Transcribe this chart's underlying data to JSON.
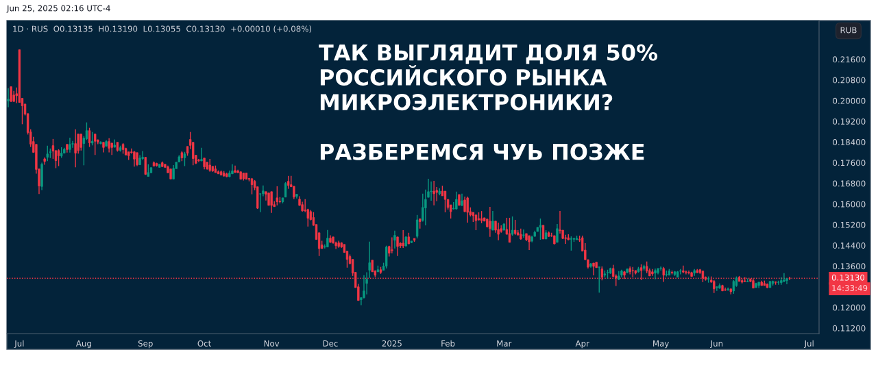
{
  "chart_data": {
    "type": "candlestick",
    "title": "ТАК ВЫГЛЯДИТ ДОЛЯ 50%\nРОССИЙСКОГО РЫНКА\nМИКРОЭЛЕКТРОНИКИ?\n\nРАЗБЕРЕМСЯ ЧУЬ ПОЗЖЕ",
    "subtitle": "1D · RUS  O0.13135  H0.13190  L0.13055  C0.13130  +0.00010 (+0.08%)",
    "annotations": [
      "Jun 25, 2025 02:16 UTC-4",
      "RUB",
      "14:33:49"
    ],
    "colors": [
      "#089981",
      "#f23645",
      "#f23645",
      "#f23645",
      "#f23645",
      "#f23645",
      "#f23645",
      "#f23645",
      "#f23645",
      "#f23645",
      "#f23645",
      "#f23645",
      "#089981",
      "#f23645",
      "#089981",
      "#089981",
      "#f23645",
      "#f23645",
      "#f23645",
      "#089981",
      "#089981",
      "#f23645",
      "#089981",
      "#089981",
      "#f23645",
      "#f23645",
      "#f23645",
      "#089981",
      "#089981",
      "#f23645",
      "#089981",
      "#f23645",
      "#f23645",
      "#089981",
      "#f23645",
      "#089981",
      "#f23645",
      "#f23645",
      "#089981",
      "#f23645",
      "#089981",
      "#f23645",
      "#f23645",
      "#f23645",
      "#f23645",
      "#f23645",
      "#f23645",
      "#089981",
      "#089981",
      "#f23645",
      "#089981",
      "#089981",
      "#f23645",
      "#f23645",
      "#089981",
      "#f23645",
      "#f23645",
      "#f23645",
      "#f23645",
      "#089981",
      "#089981",
      "#089981",
      "#f23645",
      "#089981",
      "#f23645",
      "#f23645",
      "#f23645",
      "#f23645",
      "#f23645",
      "#089981",
      "#f23645",
      "#f23645",
      "#f23645",
      "#f23645",
      "#f23645",
      "#f23645",
      "#f23645",
      "#f23645",
      "#f23645",
      "#089981",
      "#089981",
      "#f23645",
      "#f23645",
      "#f23645",
      "#f23645",
      "#f23645",
      "#f23645",
      "#f23645",
      "#f23645",
      "#f23645",
      "#089981",
      "#089981",
      "#f23645",
      "#f23645",
      "#f23645",
      "#f23645",
      "#f23645",
      "#f23645",
      "#089981",
      "#089981",
      "#f23645",
      "#f23645",
      "#f23645",
      "#089981",
      "#f23645",
      "#f23645",
      "#f23645",
      "#f23645",
      "#f23645",
      "#f23645",
      "#f23645",
      "#f23645",
      "#f23645",
      "#089981",
      "#089981",
      "#f23645",
      "#f23645",
      "#f23645",
      "#f23645",
      "#f23645",
      "#f23645",
      "#f23645",
      "#f23645",
      "#f23645",
      "#f23645",
      "#f23645",
      "#089981",
      "#089981",
      "#089981",
      "#089981",
      "#f23645",
      "#f23645",
      "#089981",
      "#f23645",
      "#089981",
      "#089981",
      "#f23645",
      "#f23645",
      "#089981",
      "#f23645",
      "#f23645",
      "#f23645",
      "#089981",
      "#f23645",
      "#089981",
      "#f23645",
      "#089981",
      "#f23645",
      "#089981",
      "#089981",
      "#089981",
      "#089981",
      "#f23645",
      "#f23645",
      "#089981",
      "#f23645",
      "#f23645",
      "#f23645",
      "#f23645",
      "#089981",
      "#089981",
      "#f23645",
      "#089981",
      "#f23645",
      "#f23645",
      "#f23645",
      "#f23645",
      "#f23645",
      "#f23645",
      "#f23645",
      "#f23645",
      "#f23645",
      "#f23645",
      "#089981",
      "#f23645",
      "#f23645",
      "#f23645",
      "#089981",
      "#f23645",
      "#f23645",
      "#089981",
      "#f23645",
      "#f23645",
      "#f23645",
      "#089981",
      "#f23645",
      "#f23645",
      "#089981",
      "#089981",
      "#089981",
      "#089981",
      "#f23645",
      "#089981",
      "#f23645",
      "#f23645",
      "#f23645",
      "#089981",
      "#f23645",
      "#f23645",
      "#f23645",
      "#f23645",
      "#089981",
      "#089981",
      "#089981",
      "#f23645",
      "#f23645",
      "#f23645",
      "#f23645",
      "#089981",
      "#f23645",
      "#f23645",
      "#089981",
      "#f23645",
      "#089981",
      "#089981",
      "#089981",
      "#f23645",
      "#f23645",
      "#089981",
      "#089981",
      "#f23645",
      "#089981",
      "#f23645",
      "#f23645",
      "#f23645",
      "#089981",
      "#f23645",
      "#089981",
      "#f23645",
      "#f23645",
      "#f23645",
      "#089981",
      "#089981",
      "#089981",
      "#f23645",
      "#089981",
      "#089981",
      "#f23645",
      "#089981",
      "#089981",
      "#089981",
      "#f23645",
      "#f23645",
      "#f23645",
      "#f23645",
      "#089981",
      "#f23645",
      "#f23645",
      "#f23645",
      "#f23645",
      "#089981",
      "#f23645",
      "#f23645",
      "#089981",
      "#089981",
      "#f23645",
      "#f23645",
      "#089981",
      "#f23645",
      "#089981",
      "#089981",
      "#f23645",
      "#f23645",
      "#f23645",
      "#089981",
      "#f23645",
      "#f23645",
      "#089981",
      "#089981",
      "#f23645",
      "#f23645",
      "#f23645",
      "#089981",
      "#089981",
      "#f23645",
      "#089981",
      "#089981",
      "#089981",
      "#089981",
      "#f23645",
      null,
      null,
      null,
      null,
      null,
      null,
      null,
      null,
      null,
      null
    ],
    "ylim": [
      0.1099,
      0.231
    ],
    "yticks": [
      {
        "value": 0.112,
        "label": "0.11200"
      },
      {
        "value": 0.12,
        "label": "0.12000"
      },
      {
        "value": 0.136,
        "label": "0.13600"
      },
      {
        "value": 0.144,
        "label": "0.14400"
      },
      {
        "value": 0.152,
        "label": "0.15200"
      },
      {
        "value": 0.16,
        "label": "0.16000"
      },
      {
        "value": 0.168,
        "label": "0.16800"
      },
      {
        "value": 0.176,
        "label": "0.17600"
      },
      {
        "value": 0.184,
        "label": "0.18400"
      },
      {
        "value": 0.192,
        "label": "0.19200"
      },
      {
        "value": 0.2,
        "label": "0.20000"
      },
      {
        "value": 0.208,
        "label": "0.20800"
      },
      {
        "value": 0.216,
        "label": "0.21600"
      }
    ],
    "ref_lines": [
      {
        "axis": "y",
        "value": 0.1313,
        "label": "0.13130",
        "color": "#f23645",
        "line_style": "dotted"
      }
    ],
    "categories": [
      null,
      null,
      null,
      null,
      "Jul",
      null,
      null,
      null,
      null,
      null,
      null,
      null,
      null,
      null,
      null,
      null,
      null,
      null,
      null,
      null,
      null,
      null,
      null,
      null,
      null,
      null,
      null,
      "Aug",
      null,
      null,
      null,
      null,
      null,
      null,
      null,
      null,
      null,
      null,
      null,
      null,
      null,
      null,
      null,
      null,
      null,
      null,
      null,
      null,
      null,
      "Sep",
      null,
      null,
      null,
      null,
      null,
      null,
      null,
      null,
      null,
      null,
      null,
      null,
      null,
      null,
      null,
      null,
      null,
      null,
      null,
      null,
      "Oct",
      null,
      null,
      null,
      null,
      null,
      null,
      null,
      null,
      null,
      null,
      null,
      null,
      null,
      null,
      null,
      null,
      null,
      null,
      null,
      null,
      null,
      null,
      null,
      "Nov",
      null,
      null,
      null,
      null,
      null,
      null,
      null,
      null,
      null,
      null,
      null,
      null,
      null,
      null,
      null,
      null,
      null,
      null,
      null,
      null,
      "Dec",
      null,
      null,
      null,
      null,
      null,
      null,
      null,
      null,
      null,
      null,
      null,
      null,
      null,
      null,
      null,
      null,
      null,
      null,
      null,
      null,
      null,
      "2025",
      null,
      null,
      null,
      null,
      null,
      null,
      null,
      null,
      null,
      null,
      null,
      null,
      null,
      null,
      null,
      null,
      null,
      null,
      null,
      "Feb",
      null,
      null,
      null,
      null,
      null,
      null,
      null,
      null,
      null,
      null,
      null,
      null,
      null,
      null,
      null,
      null,
      null,
      null,
      null,
      "Mar",
      null,
      null,
      null,
      null,
      null,
      null,
      null,
      null,
      null,
      null,
      null,
      null,
      null,
      null,
      null,
      null,
      null,
      null,
      null,
      null,
      null,
      null,
      null,
      null,
      null,
      null,
      null,
      "Apr",
      null,
      null,
      null,
      null,
      null,
      null,
      null,
      null,
      null,
      null,
      null,
      null,
      null,
      null,
      null,
      null,
      null,
      null,
      null,
      null,
      null,
      null,
      null,
      null,
      null,
      null,
      null,
      "May",
      null,
      null,
      null,
      null,
      null,
      null,
      null,
      null,
      null,
      null,
      null,
      null,
      null,
      null,
      null,
      null,
      null,
      null,
      null,
      "Jun",
      null,
      null,
      null,
      null,
      null,
      null,
      null,
      null,
      null,
      null,
      null,
      null,
      null,
      null,
      null,
      null,
      null,
      null,
      null,
      null,
      null,
      null,
      null,
      null,
      null,
      null,
      null,
      null,
      null,
      null,
      null,
      null,
      "Jul",
      null,
      null,
      null
    ],
    "ohlc": [
      [
        0.1999,
        0.2048,
        0.1975,
        0.2006
      ],
      [
        0.2054,
        0.2054,
        0.1995,
        0.1997
      ],
      [
        0.2022,
        0.2038,
        0.1996,
        0.1997
      ],
      [
        0.2027,
        0.2051,
        0.1991,
        0.2019
      ],
      [
        0.2197,
        0.2197,
        0.1993,
        0.1993
      ],
      [
        0.2009,
        0.2009,
        0.1909,
        0.198
      ],
      [
        0.1987,
        0.1987,
        0.1943,
        0.1948
      ],
      [
        0.195,
        0.195,
        0.1869,
        0.1877
      ],
      [
        0.1879,
        0.1889,
        0.1821,
        0.1832
      ],
      [
        0.1842,
        0.186,
        0.18,
        0.18
      ],
      [
        0.1831,
        0.1831,
        0.1718,
        0.1734
      ],
      [
        0.1736,
        0.1736,
        0.1639,
        0.167
      ],
      [
        0.1668,
        0.176,
        0.1654,
        0.1754
      ],
      [
        0.1775,
        0.1781,
        0.1752,
        0.1765
      ],
      [
        0.1781,
        0.1826,
        0.1766,
        0.1794
      ],
      [
        0.18,
        0.1815,
        0.1778,
        0.1802
      ],
      [
        0.1826,
        0.1852,
        0.1775,
        0.1805
      ],
      [
        0.1807,
        0.1807,
        0.1739,
        0.1768
      ],
      [
        0.1807,
        0.1812,
        0.1747,
        0.1787
      ],
      [
        0.1786,
        0.182,
        0.1779,
        0.1797
      ],
      [
        0.1797,
        0.1818,
        0.1797,
        0.1812
      ],
      [
        0.1831,
        0.1831,
        0.1799,
        0.1811
      ],
      [
        0.1811,
        0.1857,
        0.1799,
        0.1831
      ],
      [
        0.1832,
        0.1844,
        0.1818,
        0.1834
      ],
      [
        0.1834,
        0.1889,
        0.1742,
        0.1797
      ],
      [
        0.1871,
        0.1871,
        0.1795,
        0.1807
      ],
      [
        0.1871,
        0.1871,
        0.1807,
        0.1819
      ],
      [
        0.1834,
        0.1863,
        0.175,
        0.1855
      ],
      [
        0.1853,
        0.1916,
        0.1848,
        0.1884
      ],
      [
        0.1884,
        0.1895,
        0.1821,
        0.1837
      ],
      [
        0.1836,
        0.1879,
        0.1827,
        0.1843
      ],
      [
        0.1871,
        0.1871,
        0.179,
        0.1843
      ],
      [
        0.1848,
        0.185,
        0.1832,
        0.184
      ],
      [
        0.1834,
        0.1843,
        0.1831,
        0.1839
      ],
      [
        0.1839,
        0.1839,
        0.18,
        0.1819
      ],
      [
        0.1824,
        0.1847,
        0.1824,
        0.1842
      ],
      [
        0.1842,
        0.1855,
        0.18,
        0.1816
      ],
      [
        0.1836,
        0.1836,
        0.179,
        0.1819
      ],
      [
        0.182,
        0.185,
        0.1819,
        0.1828
      ],
      [
        0.1839,
        0.1839,
        0.1803,
        0.1808
      ],
      [
        0.1808,
        0.1826,
        0.1803,
        0.1818
      ],
      [
        0.1831,
        0.1836,
        0.1795,
        0.1811
      ],
      [
        0.1815,
        0.1818,
        0.179,
        0.179
      ],
      [
        0.1802,
        0.1802,
        0.1771,
        0.1787
      ],
      [
        0.1802,
        0.1815,
        0.1795,
        0.1799
      ],
      [
        0.1802,
        0.1805,
        0.1745,
        0.1774
      ],
      [
        0.1799,
        0.1799,
        0.1747,
        0.1752
      ],
      [
        0.1752,
        0.1789,
        0.1752,
        0.1778
      ],
      [
        0.1776,
        0.1805,
        0.1771,
        0.1781
      ],
      [
        0.1781,
        0.1781,
        0.1713,
        0.1715
      ],
      [
        0.1707,
        0.1754,
        0.1707,
        0.1722
      ],
      [
        0.1721,
        0.1741,
        0.1721,
        0.1741
      ],
      [
        0.176,
        0.1765,
        0.1747,
        0.1747
      ],
      [
        0.1757,
        0.176,
        0.1745,
        0.1749
      ],
      [
        0.1742,
        0.1754,
        0.1742,
        0.1754
      ],
      [
        0.176,
        0.1765,
        0.1745,
        0.1745
      ],
      [
        0.1754,
        0.1754,
        0.1742,
        0.1742
      ],
      [
        0.1744,
        0.1749,
        0.1721,
        0.1721
      ],
      [
        0.1736,
        0.1736,
        0.1697,
        0.1697
      ],
      [
        0.1697,
        0.1751,
        0.1697,
        0.1738
      ],
      [
        0.1737,
        0.1762,
        0.1737,
        0.1762
      ],
      [
        0.1763,
        0.1789,
        0.1763,
        0.1783
      ],
      [
        0.1799,
        0.1805,
        0.1766,
        0.1779
      ],
      [
        0.1779,
        0.1802,
        0.1747,
        0.1794
      ],
      [
        0.1823,
        0.1823,
        0.1787,
        0.1797
      ],
      [
        0.185,
        0.1879,
        0.1813,
        0.1827
      ],
      [
        0.1839,
        0.1839,
        0.175,
        0.1776
      ],
      [
        0.1789,
        0.1789,
        0.1755,
        0.1758
      ],
      [
        0.1771,
        0.1775,
        0.1763,
        0.1768
      ],
      [
        0.1767,
        0.1818,
        0.1766,
        0.1773
      ],
      [
        0.1778,
        0.1778,
        0.1734,
        0.1744
      ],
      [
        0.1762,
        0.1762,
        0.1733,
        0.1736
      ],
      [
        0.1751,
        0.1775,
        0.1725,
        0.173
      ],
      [
        0.1746,
        0.1746,
        0.1725,
        0.1728
      ],
      [
        0.1736,
        0.1749,
        0.1722,
        0.1722
      ],
      [
        0.1725,
        0.173,
        0.1717,
        0.1717
      ],
      [
        0.1725,
        0.173,
        0.1712,
        0.1712
      ],
      [
        0.172,
        0.1728,
        0.1706,
        0.1709
      ],
      [
        0.1717,
        0.1722,
        0.1704,
        0.1706
      ],
      [
        0.1706,
        0.173,
        0.1704,
        0.172
      ],
      [
        0.1717,
        0.1754,
        0.1717,
        0.1728
      ],
      [
        0.173,
        0.1749,
        0.1722,
        0.1722
      ],
      [
        0.1728,
        0.1733,
        0.172,
        0.1722
      ],
      [
        0.1725,
        0.1725,
        0.1696,
        0.1696
      ],
      [
        0.172,
        0.172,
        0.1691,
        0.1698
      ],
      [
        0.172,
        0.172,
        0.1696,
        0.1696
      ],
      [
        0.1699,
        0.1701,
        0.1688,
        0.1696
      ],
      [
        0.1698,
        0.1701,
        0.1638,
        0.1675
      ],
      [
        0.1688,
        0.1693,
        0.1654,
        0.1664
      ],
      [
        0.1667,
        0.1667,
        0.1581,
        0.1584
      ],
      [
        0.1639,
        0.164,
        0.1569,
        0.164
      ],
      [
        0.164,
        0.1672,
        0.163,
        0.1651
      ],
      [
        0.1648,
        0.1648,
        0.1614,
        0.1638
      ],
      [
        0.1643,
        0.1643,
        0.1595,
        0.1595
      ],
      [
        0.1648,
        0.1648,
        0.1566,
        0.1595
      ],
      [
        0.1598,
        0.1611,
        0.159,
        0.159
      ],
      [
        0.1624,
        0.1669,
        0.1595,
        0.1609
      ],
      [
        0.1611,
        0.1627,
        0.1603,
        0.1609
      ],
      [
        0.1609,
        0.1624,
        0.1603,
        0.1624
      ],
      [
        0.1627,
        0.1685,
        0.1627,
        0.168
      ],
      [
        0.1688,
        0.1709,
        0.1659,
        0.1672
      ],
      [
        0.1675,
        0.1709,
        0.1667,
        0.1667
      ],
      [
        0.1669,
        0.1669,
        0.1619,
        0.1627
      ],
      [
        0.163,
        0.1638,
        0.1622,
        0.1638
      ],
      [
        0.1619,
        0.163,
        0.1593,
        0.1595
      ],
      [
        0.1598,
        0.1609,
        0.1571,
        0.1574
      ],
      [
        0.1577,
        0.1619,
        0.1569,
        0.1574
      ],
      [
        0.1579,
        0.1582,
        0.1513,
        0.1545
      ],
      [
        0.1571,
        0.1577,
        0.1537,
        0.154
      ],
      [
        0.1548,
        0.1569,
        0.1516,
        0.1518
      ],
      [
        0.1521,
        0.1521,
        0.1463,
        0.1463
      ],
      [
        0.1489,
        0.1489,
        0.1399,
        0.1428
      ],
      [
        0.1442,
        0.1458,
        0.1428,
        0.1428
      ],
      [
        0.1434,
        0.1444,
        0.1428,
        0.1436
      ],
      [
        0.1434,
        0.15,
        0.1434,
        0.1468
      ],
      [
        0.1468,
        0.1479,
        0.145,
        0.1452
      ],
      [
        0.1473,
        0.1473,
        0.1447,
        0.145
      ],
      [
        0.145,
        0.1455,
        0.1426,
        0.1439
      ],
      [
        0.145,
        0.1458,
        0.1431,
        0.1436
      ],
      [
        0.145,
        0.1452,
        0.1431,
        0.1434
      ],
      [
        0.1444,
        0.1444,
        0.1413,
        0.1413
      ],
      [
        0.1418,
        0.1418,
        0.1354,
        0.1386
      ],
      [
        0.1397,
        0.1405,
        0.1367,
        0.137
      ],
      [
        0.1386,
        0.1386,
        0.1322,
        0.1333
      ],
      [
        0.1336,
        0.1336,
        0.1277,
        0.1277
      ],
      [
        0.128,
        0.1291,
        0.1227,
        0.1227
      ],
      [
        0.123,
        0.1238,
        0.1209,
        0.1238
      ],
      [
        0.1238,
        0.1325,
        0.1235,
        0.1264
      ],
      [
        0.1293,
        0.1336,
        0.1251,
        0.1309
      ],
      [
        0.1344,
        0.1455,
        0.1314,
        0.1373
      ],
      [
        0.1383,
        0.1383,
        0.1338,
        0.1338
      ],
      [
        0.1341,
        0.1344,
        0.1317,
        0.1325
      ],
      [
        0.1338,
        0.1362,
        0.1338,
        0.1346
      ],
      [
        0.1346,
        0.1357,
        0.133,
        0.1336
      ],
      [
        0.1344,
        0.1373,
        0.1344,
        0.136
      ],
      [
        0.136,
        0.1439,
        0.1351,
        0.1434
      ],
      [
        0.1436,
        0.1439,
        0.1397,
        0.141
      ],
      [
        0.1423,
        0.1471,
        0.141,
        0.142
      ],
      [
        0.146,
        0.1497,
        0.1428,
        0.1479
      ],
      [
        0.1473,
        0.1473,
        0.1399,
        0.1436
      ],
      [
        0.1449,
        0.1452,
        0.143,
        0.1438
      ],
      [
        0.1449,
        0.1499,
        0.143,
        0.1438
      ],
      [
        0.1438,
        0.1475,
        0.1436,
        0.1473
      ],
      [
        0.1473,
        0.1489,
        0.1446,
        0.1446
      ],
      [
        0.1451,
        0.1457,
        0.1449,
        0.1457
      ],
      [
        0.1467,
        0.1467,
        0.1454,
        0.146
      ],
      [
        0.1475,
        0.1558,
        0.1467,
        0.1539
      ],
      [
        0.1543,
        0.1543,
        0.1505,
        0.1532
      ],
      [
        0.1537,
        0.164,
        0.1532,
        0.1587
      ],
      [
        0.1585,
        0.1656,
        0.1518,
        0.1618
      ],
      [
        0.1626,
        0.1698,
        0.1626,
        0.1648
      ],
      [
        0.1648,
        0.1687,
        0.1613,
        0.165
      ],
      [
        0.165,
        0.169,
        0.1595,
        0.164
      ],
      [
        0.1653,
        0.1666,
        0.1611,
        0.1645
      ],
      [
        0.164,
        0.1661,
        0.1634,
        0.165
      ],
      [
        0.165,
        0.1671,
        0.1632,
        0.1632
      ],
      [
        0.165,
        0.165,
        0.1568,
        0.1618
      ],
      [
        0.1618,
        0.1618,
        0.1579,
        0.1587
      ],
      [
        0.1597,
        0.1597,
        0.1544,
        0.1571
      ],
      [
        0.1581,
        0.1608,
        0.1579,
        0.1584
      ],
      [
        0.1581,
        0.1648,
        0.1579,
        0.1618
      ],
      [
        0.1637,
        0.1637,
        0.1595,
        0.1595
      ],
      [
        0.1595,
        0.164,
        0.1592,
        0.1613
      ],
      [
        0.1616,
        0.1629,
        0.1568,
        0.1571
      ],
      [
        0.1624,
        0.1629,
        0.1528,
        0.1568
      ],
      [
        0.1571,
        0.1587,
        0.1552,
        0.1558
      ],
      [
        0.1568,
        0.1568,
        0.1531,
        0.1555
      ],
      [
        0.1558,
        0.1558,
        0.1499,
        0.1536
      ],
      [
        0.1544,
        0.1568,
        0.1536,
        0.1539
      ],
      [
        0.1544,
        0.1573,
        0.1526,
        0.1536
      ],
      [
        0.1547,
        0.1547,
        0.1534,
        0.1534
      ],
      [
        0.1542,
        0.1542,
        0.151,
        0.1512
      ],
      [
        0.1534,
        0.1589,
        0.1473,
        0.1505
      ],
      [
        0.1499,
        0.1573,
        0.1499,
        0.1534
      ],
      [
        0.1534,
        0.1534,
        0.1489,
        0.1499
      ],
      [
        0.1502,
        0.1528,
        0.146,
        0.1483
      ],
      [
        0.1505,
        0.1518,
        0.1489,
        0.1494
      ],
      [
        0.1499,
        0.1526,
        0.1499,
        0.1523
      ],
      [
        0.1502,
        0.1547,
        0.1483,
        0.1483
      ],
      [
        0.1486,
        0.1547,
        0.1452,
        0.1452
      ],
      [
        0.1483,
        0.1552,
        0.1478,
        0.1499
      ],
      [
        0.1499,
        0.1539,
        0.1481,
        0.1486
      ],
      [
        0.1489,
        0.1499,
        0.1478,
        0.1481
      ],
      [
        0.1483,
        0.1505,
        0.1462,
        0.1465
      ],
      [
        0.1479,
        0.1502,
        0.147,
        0.1481
      ],
      [
        0.1486,
        0.1486,
        0.1457,
        0.1462
      ],
      [
        0.1478,
        0.1478,
        0.1422,
        0.1454
      ],
      [
        0.1457,
        0.1478,
        0.1452,
        0.1473
      ],
      [
        0.1475,
        0.1497,
        0.1475,
        0.1491
      ],
      [
        0.1494,
        0.151,
        0.1494,
        0.151
      ],
      [
        0.151,
        0.1544,
        0.1462,
        0.1518
      ],
      [
        0.1518,
        0.1518,
        0.1465,
        0.1465
      ],
      [
        0.1465,
        0.1499,
        0.1465,
        0.1489
      ],
      [
        0.1489,
        0.1494,
        0.1473,
        0.1475
      ],
      [
        0.1478,
        0.1489,
        0.1473,
        0.1476
      ],
      [
        0.1478,
        0.1478,
        0.1444,
        0.1446
      ],
      [
        0.1452,
        0.1523,
        0.1452,
        0.1505
      ],
      [
        0.15,
        0.1573,
        0.1486,
        0.1497
      ],
      [
        0.1499,
        0.1499,
        0.1465,
        0.1467
      ],
      [
        0.147,
        0.1481,
        0.1446,
        0.1467
      ],
      [
        0.147,
        0.1483,
        0.146,
        0.1462
      ],
      [
        0.1464,
        0.1475,
        0.142,
        0.1466
      ],
      [
        0.1464,
        0.147,
        0.1454,
        0.1467
      ],
      [
        0.1462,
        0.1478,
        0.1462,
        0.1467
      ],
      [
        0.1463,
        0.1478,
        0.1454,
        0.1461
      ],
      [
        0.147,
        0.1478,
        0.1417,
        0.1418
      ],
      [
        0.1422,
        0.1449,
        0.1383,
        0.1385
      ],
      [
        0.1385,
        0.1385,
        0.1351,
        0.1356
      ],
      [
        0.1359,
        0.1372,
        0.1354,
        0.1369
      ],
      [
        0.1372,
        0.1372,
        0.1324,
        0.1359
      ],
      [
        0.1375,
        0.1375,
        0.1354,
        0.1354
      ],
      [
        0.1355,
        0.1357,
        0.1257,
        0.1357
      ],
      [
        0.1349,
        0.1359,
        0.1305,
        0.1317
      ],
      [
        0.1325,
        0.1343,
        0.1317,
        0.133
      ],
      [
        0.1335,
        0.1346,
        0.1312,
        0.1336
      ],
      [
        0.1333,
        0.1354,
        0.133,
        0.1351
      ],
      [
        0.1351,
        0.1365,
        0.1317,
        0.132
      ],
      [
        0.1322,
        0.1328,
        0.1283,
        0.1314
      ],
      [
        0.1309,
        0.1341,
        0.1306,
        0.1322
      ],
      [
        0.1325,
        0.1346,
        0.1317,
        0.1341
      ],
      [
        0.1338,
        0.1341,
        0.131,
        0.1325
      ],
      [
        0.1335,
        0.1351,
        0.1333,
        0.1349
      ],
      [
        0.1351,
        0.1359,
        0.1328,
        0.1338
      ],
      [
        0.1343,
        0.1357,
        0.1317,
        0.1342
      ],
      [
        0.1343,
        0.1343,
        0.1328,
        0.1333
      ],
      [
        0.1338,
        0.1357,
        0.1335,
        0.1349
      ],
      [
        0.1354,
        0.1367,
        0.1306,
        0.1343
      ],
      [
        0.1351,
        0.1365,
        0.1343,
        0.1359
      ],
      [
        0.1359,
        0.1378,
        0.1333,
        0.1341
      ],
      [
        0.1343,
        0.1351,
        0.1322,
        0.1322
      ],
      [
        0.1338,
        0.1349,
        0.1322,
        0.133
      ],
      [
        0.1333,
        0.1351,
        0.1309,
        0.1343
      ],
      [
        0.1335,
        0.1351,
        0.1328,
        0.1351
      ],
      [
        0.1351,
        0.1359,
        0.1343,
        0.1353
      ],
      [
        0.1351,
        0.1357,
        0.1299,
        0.1325
      ],
      [
        0.1327,
        0.1343,
        0.132,
        0.1328
      ],
      [
        0.1325,
        0.1349,
        0.1325,
        0.1341
      ],
      [
        0.1336,
        0.1343,
        0.1328,
        0.1334
      ],
      [
        0.1328,
        0.1341,
        0.1322,
        0.1338
      ],
      [
        0.1317,
        0.1341,
        0.1317,
        0.1338
      ],
      [
        0.134,
        0.1349,
        0.1328,
        0.1342
      ],
      [
        0.1342,
        0.1362,
        0.1333,
        0.1337
      ],
      [
        0.1338,
        0.1343,
        0.1328,
        0.1336
      ],
      [
        0.1336,
        0.1343,
        0.1328,
        0.1334
      ],
      [
        0.1335,
        0.1338,
        0.132,
        0.132
      ],
      [
        0.1333,
        0.1349,
        0.1322,
        0.1343
      ],
      [
        0.1343,
        0.1349,
        0.1333,
        0.1335
      ],
      [
        0.1346,
        0.1349,
        0.133,
        0.1335
      ],
      [
        0.1341,
        0.1341,
        0.1298,
        0.1314
      ],
      [
        0.1317,
        0.132,
        0.1304,
        0.1309
      ],
      [
        0.131,
        0.132,
        0.1296,
        0.1312
      ],
      [
        0.1306,
        0.132,
        0.1296,
        0.1298
      ],
      [
        0.1301,
        0.1306,
        0.1256,
        0.1272
      ],
      [
        0.1277,
        0.1282,
        0.1264,
        0.128
      ],
      [
        0.1275,
        0.1293,
        0.1272,
        0.1285
      ],
      [
        0.1285,
        0.1288,
        0.1264,
        0.1264
      ],
      [
        0.1269,
        0.1277,
        0.1264,
        0.1267
      ],
      [
        0.1269,
        0.1277,
        0.1264,
        0.1272
      ],
      [
        0.1272,
        0.1272,
        0.1251,
        0.1261
      ],
      [
        0.1264,
        0.1306,
        0.1253,
        0.1301
      ],
      [
        0.1285,
        0.132,
        0.128,
        0.1314
      ],
      [
        0.1317,
        0.1322,
        0.1301,
        0.1301
      ],
      [
        0.1304,
        0.1312,
        0.1293,
        0.1298
      ],
      [
        0.1303,
        0.1317,
        0.1298,
        0.1301
      ],
      [
        0.1299,
        0.1312,
        0.1298,
        0.1301
      ],
      [
        0.1309,
        0.1312,
        0.1298,
        0.1301
      ],
      [
        0.1304,
        0.1312,
        0.1275,
        0.1275
      ],
      [
        0.1277,
        0.1296,
        0.1277,
        0.1293
      ],
      [
        0.1285,
        0.1298,
        0.1275,
        0.1298
      ],
      [
        0.1298,
        0.1304,
        0.1285,
        0.1285
      ],
      [
        0.1293,
        0.1304,
        0.1285,
        0.1285
      ],
      [
        0.129,
        0.1293,
        0.1275,
        0.1277
      ],
      [
        0.1277,
        0.1301,
        0.1277,
        0.1301
      ],
      [
        0.1293,
        0.1304,
        0.1285,
        0.1301
      ],
      [
        0.1299,
        0.1301,
        0.1288,
        0.1297
      ],
      [
        0.1297,
        0.1304,
        0.1288,
        0.1298
      ],
      [
        0.1296,
        0.1317,
        0.1288,
        0.1304
      ],
      [
        0.1301,
        0.1333,
        0.1298,
        0.1306
      ],
      [
        0.1304,
        0.1312,
        0.129,
        0.1312
      ],
      [
        0.13135,
        0.1319,
        0.13055,
        0.1313
      ],
      null,
      null,
      null,
      null,
      null,
      null,
      null,
      null,
      null,
      null
    ]
  }
}
